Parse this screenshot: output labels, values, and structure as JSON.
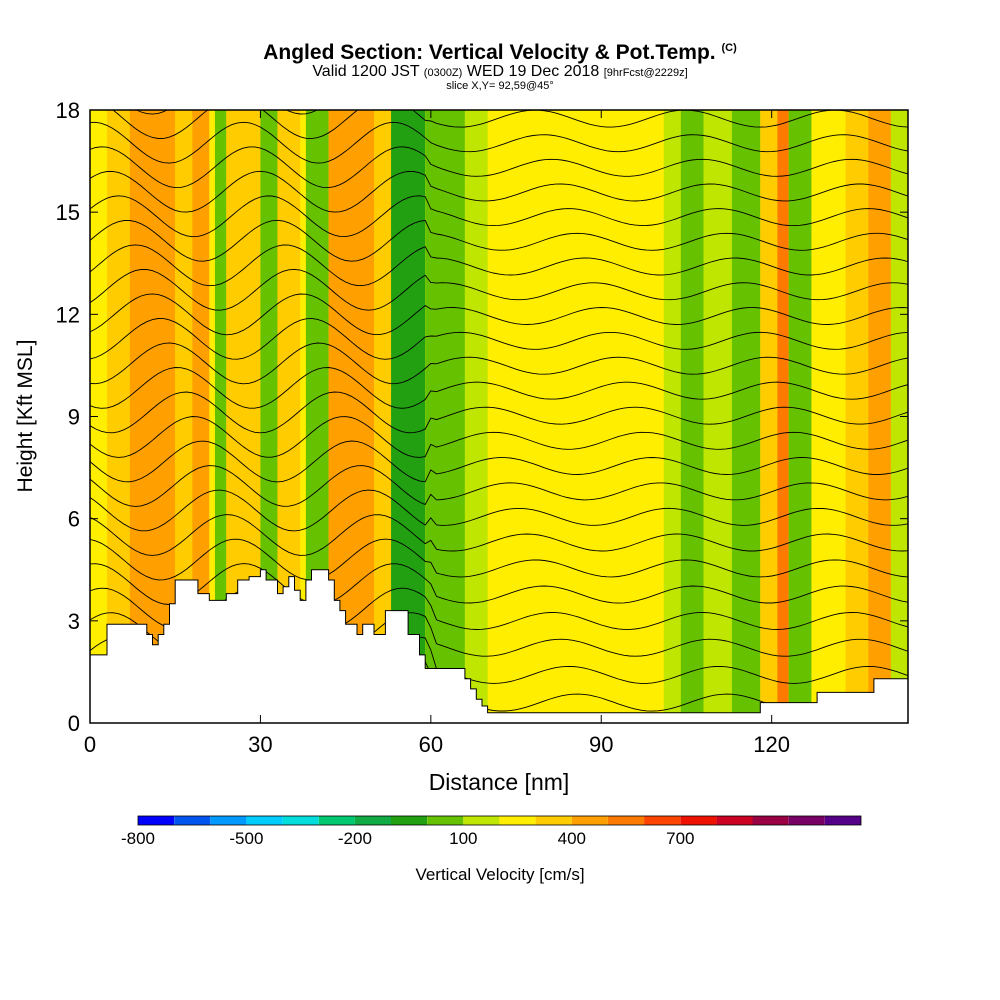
{
  "header": {
    "title": "Angled Section: Vertical Velocity & Pot.Temp.",
    "title_mark": "(C)",
    "valid_prefix": "Valid 1200 JST",
    "valid_small": "(0300Z)",
    "valid_date": "WED 19 Dec 2018",
    "forecast_small": "[9hrFcst@2229z]",
    "slice": "slice X,Y= 92,59@45°"
  },
  "chart_data": {
    "type": "heatmap",
    "title": "Angled Section: Vertical Velocity & Pot.Temp.",
    "xlabel": "Distance [nm]",
    "ylabel": "Height [Kft MSL]",
    "xlim": [
      0,
      144
    ],
    "ylim": [
      0,
      18
    ],
    "xticks": [
      0,
      30,
      60,
      90,
      120
    ],
    "yticks": [
      0,
      3,
      6,
      9,
      12,
      15,
      18
    ],
    "terrain": {
      "x": [
        0,
        3,
        5,
        8,
        10,
        11,
        12,
        13,
        14,
        15,
        17,
        19,
        21,
        23,
        24,
        26,
        28,
        30,
        31,
        33,
        34,
        35,
        36,
        37,
        38,
        39,
        40,
        41,
        42,
        43,
        44,
        45,
        46,
        47,
        48,
        49,
        50,
        51,
        52,
        53,
        54,
        55,
        56,
        57,
        58,
        59,
        60,
        61,
        62,
        64,
        65,
        66,
        67,
        68,
        69,
        70,
        72,
        75,
        80,
        85,
        90,
        95,
        100,
        104,
        106,
        110,
        114,
        118,
        122,
        126,
        128,
        130,
        135,
        138,
        141,
        144
      ],
      "height": [
        2.0,
        2.9,
        2.9,
        2.9,
        2.6,
        2.3,
        2.6,
        2.9,
        3.5,
        4.2,
        4.2,
        3.8,
        3.6,
        3.6,
        3.8,
        4.2,
        4.3,
        4.5,
        4.2,
        3.8,
        4.0,
        4.3,
        3.9,
        3.6,
        4.2,
        4.5,
        4.5,
        4.5,
        4.2,
        3.6,
        3.3,
        2.9,
        2.9,
        2.6,
        2.9,
        2.9,
        2.6,
        2.6,
        3.3,
        3.3,
        3.3,
        3.3,
        2.6,
        2.6,
        2.0,
        1.6,
        1.6,
        1.6,
        1.6,
        1.6,
        1.6,
        1.3,
        1.0,
        0.7,
        0.5,
        0.3,
        0.3,
        0.3,
        0.3,
        0.3,
        0.3,
        0.3,
        0.3,
        0.3,
        0.3,
        0.3,
        0.3,
        0.6,
        0.6,
        0.6,
        0.9,
        0.9,
        0.9,
        1.3,
        1.3,
        1.3
      ]
    },
    "velocity_bands": [
      {
        "x0": 3,
        "x1": 7,
        "class": 100
      },
      {
        "x0": 7,
        "x1": 15,
        "class": 200
      },
      {
        "x0": 15,
        "x1": 18,
        "class": 100
      },
      {
        "x0": 18,
        "x1": 21,
        "class": 200
      },
      {
        "x0": 22,
        "x1": 24,
        "class": -100
      },
      {
        "x0": 24,
        "x1": 30,
        "class": 100
      },
      {
        "x0": 30,
        "x1": 33,
        "class": -100
      },
      {
        "x0": 33,
        "x1": 37,
        "class": 100
      },
      {
        "x0": 38,
        "x1": 42,
        "class": -100
      },
      {
        "x0": 42,
        "x1": 50,
        "class": 200
      },
      {
        "x0": 50,
        "x1": 53,
        "class": 100
      },
      {
        "x0": 53,
        "x1": 59,
        "class": -200
      },
      {
        "x0": 59,
        "x1": 66,
        "class": -100
      },
      {
        "x0": 66,
        "x1": 70,
        "class": 0
      },
      {
        "x0": 101,
        "x1": 104,
        "class": 0
      },
      {
        "x0": 104,
        "x1": 108,
        "class": -100
      },
      {
        "x0": 108,
        "x1": 113,
        "class": 0
      },
      {
        "x0": 113,
        "x1": 118,
        "class": -100
      },
      {
        "x0": 118,
        "x1": 121,
        "class": 100
      },
      {
        "x0": 121,
        "x1": 123,
        "class": 300
      },
      {
        "x0": 123,
        "x1": 127,
        "class": -100
      },
      {
        "x0": 133,
        "x1": 137,
        "class": 100
      },
      {
        "x0": 137,
        "x1": 141,
        "class": 200
      },
      {
        "x0": 141,
        "x1": 144,
        "class": 0
      }
    ],
    "isentropes_count": 25,
    "colorbar": {
      "label": "Vertical Velocity [cm/s]",
      "tick_labels": [
        "-800",
        "-500",
        "-200",
        "100",
        "400",
        "700"
      ],
      "colors": [
        "#0000ff",
        "#0055ee",
        "#0099ff",
        "#00ccff",
        "#00dddd",
        "#00c870",
        "#11aa44",
        "#22a012",
        "#66c200",
        "#bfe600",
        "#ffee00",
        "#ffcc00",
        "#ffa000",
        "#ff7a00",
        "#ff4400",
        "#ee1100",
        "#cc0022",
        "#990044",
        "#770066",
        "#550088"
      ]
    }
  }
}
